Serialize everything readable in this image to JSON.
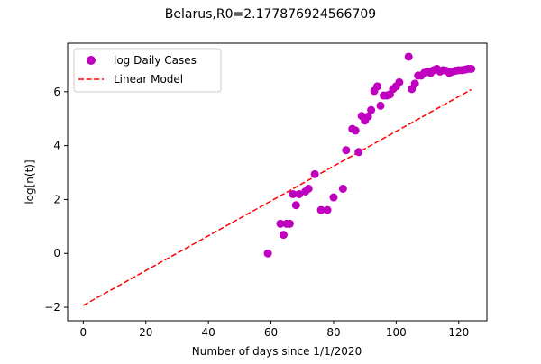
{
  "chart_data": {
    "type": "scatter",
    "title": "Belarus,R0=2.177876924566709",
    "xlabel": "Number of days since 1/1/2020",
    "ylabel": "log[n(t)]",
    "xlim": [
      -5,
      129
    ],
    "ylim": [
      -2.5,
      7.8
    ],
    "x_ticks": [
      0,
      20,
      40,
      60,
      80,
      100,
      120
    ],
    "y_ticks": [
      -2,
      0,
      2,
      4,
      6
    ],
    "y_tick_labels": [
      "−2",
      "0",
      "2",
      "4",
      "6"
    ],
    "legend_position": "top-left",
    "grid": false,
    "series": [
      {
        "name": "log Daily Cases",
        "kind": "scatter",
        "color": "#bf00bf",
        "points": [
          [
            59,
            0.0
          ],
          [
            63,
            1.1
          ],
          [
            64,
            0.69
          ],
          [
            65,
            1.1
          ],
          [
            66,
            1.1
          ],
          [
            67,
            2.2
          ],
          [
            68,
            1.79
          ],
          [
            69,
            2.2
          ],
          [
            71,
            2.3
          ],
          [
            72,
            2.4
          ],
          [
            74,
            2.94
          ],
          [
            76,
            1.61
          ],
          [
            78,
            1.61
          ],
          [
            80,
            2.08
          ],
          [
            83,
            2.4
          ],
          [
            84,
            3.83
          ],
          [
            86,
            4.62
          ],
          [
            87,
            4.56
          ],
          [
            88,
            3.76
          ],
          [
            89,
            5.1
          ],
          [
            90,
            4.93
          ],
          [
            91,
            5.08
          ],
          [
            92,
            5.32
          ],
          [
            93,
            6.03
          ],
          [
            94,
            6.2
          ],
          [
            95,
            5.48
          ],
          [
            96,
            5.86
          ],
          [
            97,
            5.86
          ],
          [
            98,
            5.9
          ],
          [
            99,
            6.1
          ],
          [
            100,
            6.2
          ],
          [
            101,
            6.35
          ],
          [
            104,
            7.3
          ],
          [
            105,
            6.1
          ],
          [
            106,
            6.3
          ],
          [
            107,
            6.6
          ],
          [
            108,
            6.6
          ],
          [
            109,
            6.7
          ],
          [
            110,
            6.75
          ],
          [
            111,
            6.7
          ],
          [
            112,
            6.8
          ],
          [
            113,
            6.85
          ],
          [
            114,
            6.75
          ],
          [
            115,
            6.8
          ],
          [
            116,
            6.78
          ],
          [
            117,
            6.7
          ],
          [
            118,
            6.75
          ],
          [
            119,
            6.78
          ],
          [
            120,
            6.8
          ],
          [
            121,
            6.8
          ],
          [
            122,
            6.82
          ],
          [
            123,
            6.85
          ],
          [
            124,
            6.85
          ]
        ]
      },
      {
        "name": "Linear Model",
        "kind": "line",
        "color": "#ff0000",
        "dash": true,
        "x": [
          0,
          124
        ],
        "y": [
          -1.93,
          6.08
        ]
      }
    ]
  }
}
